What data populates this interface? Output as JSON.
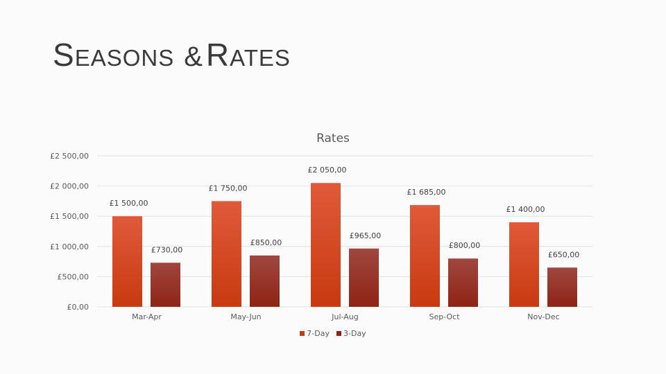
{
  "slide": {
    "title_parts": [
      {
        "text": "S",
        "size": "big"
      },
      {
        "text": "EASONS",
        "size": "small"
      },
      {
        "text": "&",
        "size": "amp"
      },
      {
        "text": "R",
        "size": "big"
      },
      {
        "text": "ATES",
        "size": "small"
      }
    ]
  },
  "chart_data": {
    "type": "bar",
    "title": "Rates",
    "categories": [
      "Mar-Apr",
      "May-Jun",
      "Jul-Aug",
      "Sep-Oct",
      "Nov-Dec"
    ],
    "series": [
      {
        "name": "7-Day",
        "values": [
          1500,
          1750,
          2050,
          1685,
          1400
        ],
        "labels": [
          "£1 500,00",
          "£1 750,00",
          "£2 050,00",
          "£1 685,00",
          "£1 400,00"
        ],
        "color_top": "#e05a3a",
        "color_bottom": "#c83a10"
      },
      {
        "name": "3-Day",
        "values": [
          730,
          850,
          965,
          800,
          650
        ],
        "labels": [
          "£730,00",
          "£850,00",
          "£965,00",
          "£800,00",
          "£650,00"
        ],
        "color_top": "#a0473f",
        "color_bottom": "#8e2415"
      }
    ],
    "y_ticks": [
      0,
      500,
      1000,
      1500,
      2000,
      2500
    ],
    "y_tick_labels": [
      "£0,00",
      "£500,00",
      "£1 000,00",
      "£1 500,00",
      "£2 000,00",
      "£2 500,00"
    ],
    "ylim": [
      0,
      2500
    ],
    "grid": true,
    "legend_position": "bottom"
  }
}
